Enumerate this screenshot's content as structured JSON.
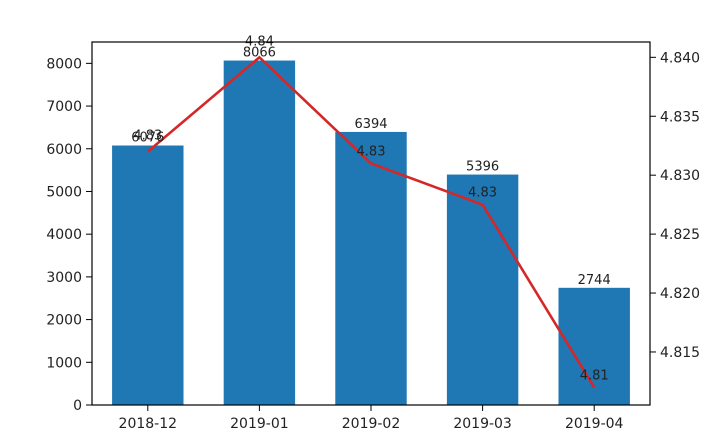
{
  "chart_data": {
    "type": "bar",
    "categories": [
      "2018-12",
      "2019-01",
      "2019-02",
      "2019-03",
      "2019-04"
    ],
    "series": [
      {
        "values": [
          6076,
          8066,
          6394,
          5396,
          2744
        ],
        "axis": "left",
        "kind": "bar",
        "color": "#1f77b4"
      },
      {
        "values": [
          4.832,
          4.84,
          4.831,
          4.8275,
          4.812
        ],
        "axis": "right",
        "kind": "line",
        "color": "#d62728"
      }
    ],
    "bar_labels": [
      "6076",
      "8066",
      "6394",
      "5396",
      "2744"
    ],
    "line_labels": [
      "4.83",
      "4.84",
      "4.83",
      "4.83",
      "4.81"
    ],
    "left_axis": {
      "ylim": [
        0,
        8500
      ],
      "ticks": [
        0,
        1000,
        2000,
        3000,
        4000,
        5000,
        6000,
        7000,
        8000
      ],
      "tick_labels": [
        "0",
        "1000",
        "2000",
        "3000",
        "4000",
        "5000",
        "6000",
        "7000",
        "8000"
      ]
    },
    "right_axis": {
      "ylim": [
        4.8105,
        4.8413
      ],
      "ticks": [
        4.815,
        4.82,
        4.825,
        4.83,
        4.835,
        4.84
      ],
      "tick_labels": [
        "4.815",
        "4.820",
        "4.825",
        "4.830",
        "4.835",
        "4.840"
      ]
    },
    "title": "",
    "xlabel": "",
    "ylabel": "",
    "grid": false,
    "legend": "none"
  }
}
